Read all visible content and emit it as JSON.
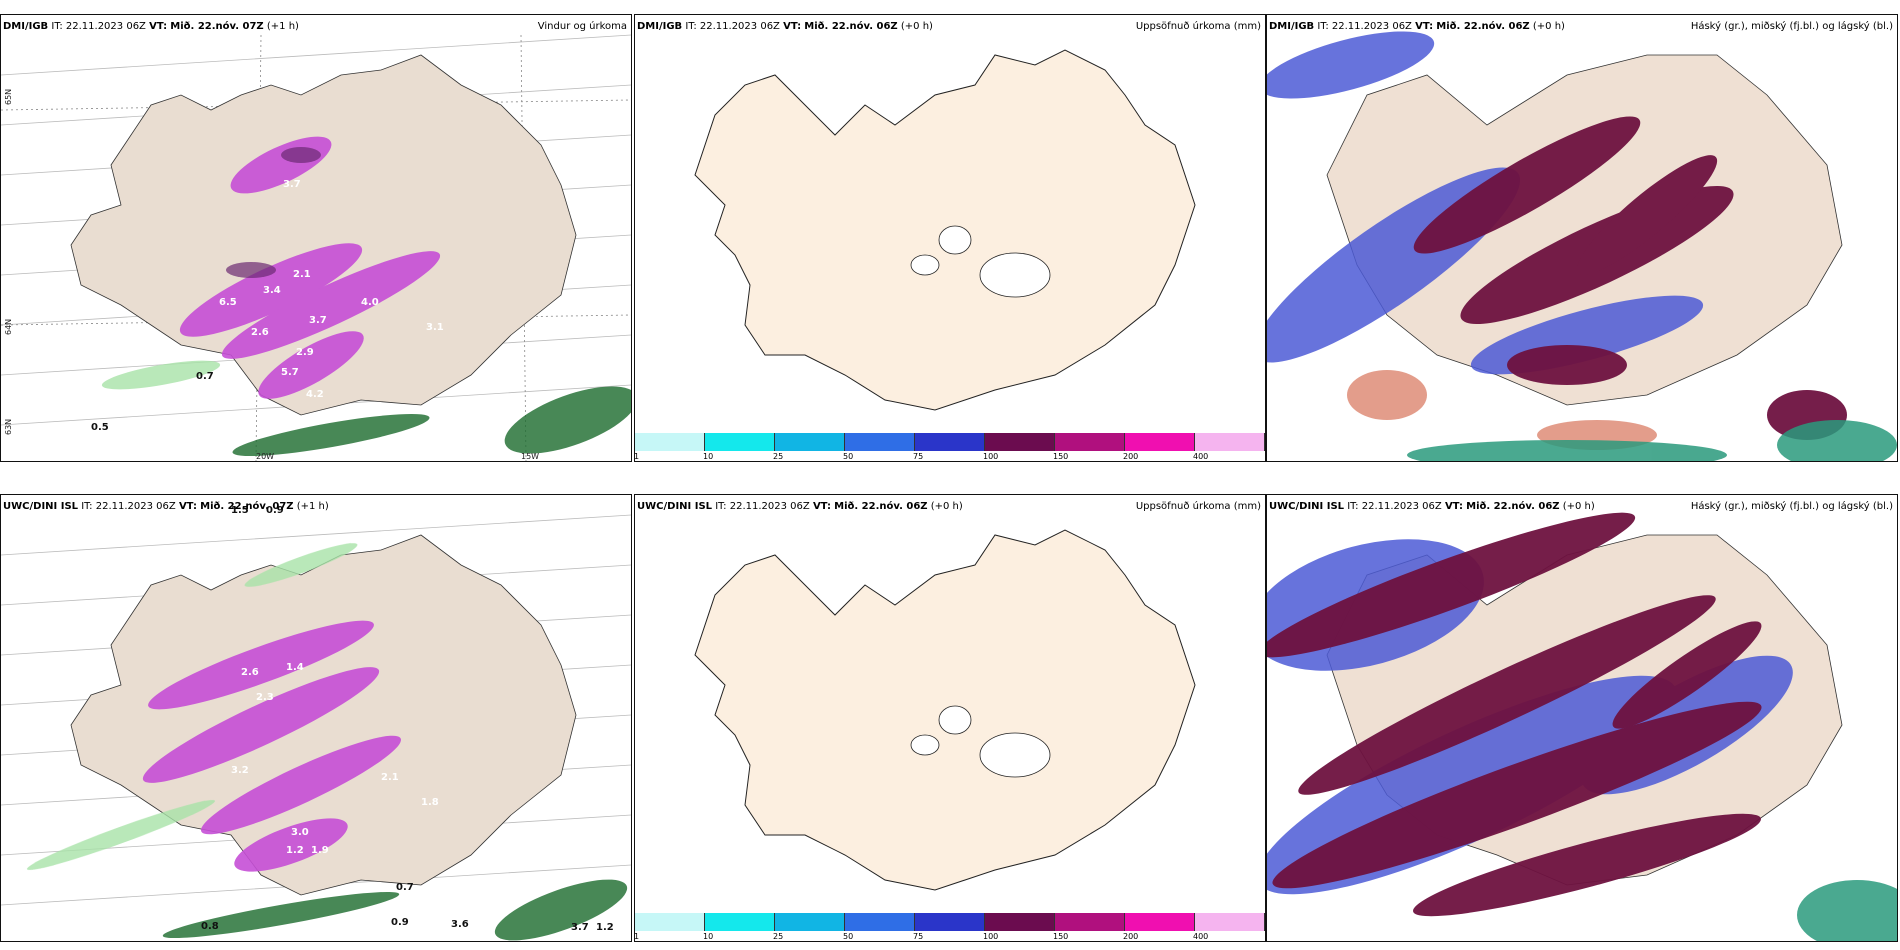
{
  "panels": [
    {
      "model": "DMI/IGB",
      "it_label": "IT:",
      "it": "22.11.2023 06Z",
      "vt_label": "VT:",
      "vt": "Mið. 22.nóv. 07Z",
      "lead": "(+1 h)",
      "title": "Vindur og úrkoma"
    },
    {
      "model": "DMI/IGB",
      "it_label": "IT:",
      "it": "22.11.2023 06Z",
      "vt_label": "VT:",
      "vt": "Mið. 22.nóv. 06Z",
      "lead": "(+0 h)",
      "title": "Uppsöfnuð úrkoma (mm)"
    },
    {
      "model": "DMI/IGB",
      "it_label": "IT:",
      "it": "22.11.2023 06Z",
      "vt_label": "VT:",
      "vt": "Mið. 22.nóv. 06Z",
      "lead": "(+0 h)",
      "title": "Háský (gr.), miðský (fj.bl.) og lágský (bl.)"
    },
    {
      "model": "UWC/DINI ISL",
      "it_label": "IT:",
      "it": "22.11.2023 06Z",
      "vt_label": "VT:",
      "vt": "Mið. 22.nóv. 07Z",
      "lead": "(+1 h)",
      "title": ""
    },
    {
      "model": "UWC/DINI ISL",
      "it_label": "IT:",
      "it": "22.11.2023 06Z",
      "vt_label": "VT:",
      "vt": "Mið. 22.nóv. 06Z",
      "lead": "(+0 h)",
      "title": "Uppsöfnuð úrkoma (mm)"
    },
    {
      "model": "UWC/DINI ISL",
      "it_label": "IT:",
      "it": "22.11.2023 06Z",
      "vt_label": "VT:",
      "vt": "Mið. 22.nóv. 06Z",
      "lead": "(+0 h)",
      "title": "Háský (gr.), miðský (fj.bl.) og lágský (bl.)"
    }
  ],
  "colorbar": {
    "colors": [
      "#c6f7f7",
      "#14e8ec",
      "#11b5e4",
      "#2f6ee6",
      "#2a35c9",
      "#6b0c4f",
      "#b0107e",
      "#f00fb0",
      "#f5b4ef"
    ],
    "ticks": [
      "1",
      "10",
      "25",
      "50",
      "75",
      "100",
      "150",
      "200",
      "400"
    ]
  },
  "axis_labels": {
    "lat65": "65N",
    "lat64": "64N",
    "lat63": "63N",
    "lon20": "20W",
    "lon15": "15W"
  },
  "precip_labels_top": [
    "3.7",
    "2.1",
    "3.4",
    "4.0",
    "3.7",
    "3.1",
    "2.6",
    "2.9",
    "5.7",
    "4.2",
    "0.7",
    "0.5",
    "6.5"
  ],
  "precip_labels_bottom": [
    "1.5",
    "0.9",
    "2.6",
    "1.4",
    "2.3",
    "3.2",
    "2.1",
    "1.8",
    "3.0",
    "1.2",
    "1.9",
    "0.7",
    "0.8",
    "0.9",
    "3.6",
    "3.7",
    "1.2"
  ]
}
